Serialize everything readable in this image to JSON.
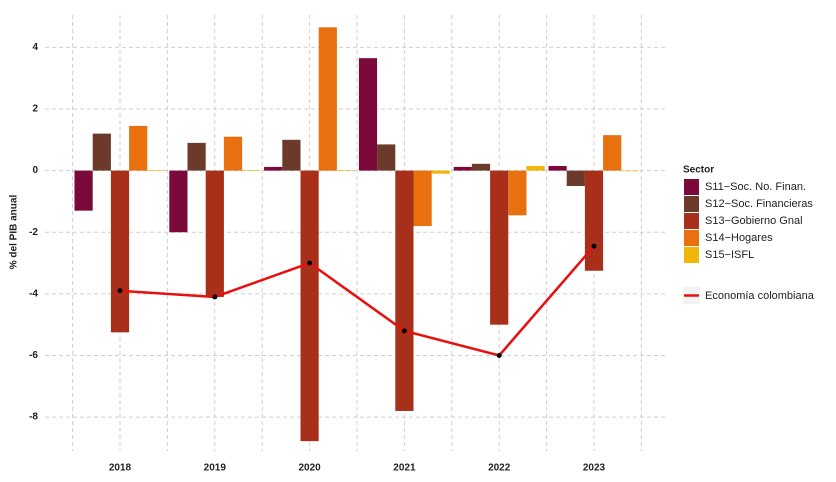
{
  "chart_data": {
    "type": "bar",
    "y_label": "% del PIB anual",
    "categories": [
      "2018",
      "2019",
      "2020",
      "2021",
      "2022",
      "2023"
    ],
    "legend_title": "Sector",
    "series": [
      {
        "name": "S11−Soc. No. Finan.",
        "color": "#7b0a3a",
        "values": [
          -1.3,
          -2.0,
          0.12,
          3.65,
          0.12,
          0.15
        ]
      },
      {
        "name": "S12−Soc. Financieras",
        "color": "#6b3a2a",
        "values": [
          1.2,
          0.9,
          1.0,
          0.85,
          0.22,
          -0.5
        ]
      },
      {
        "name": "S13−Gobierno Gnal",
        "color": "#a8301a",
        "values": [
          -5.25,
          -4.1,
          -8.78,
          -7.8,
          -5.0,
          -3.25
        ]
      },
      {
        "name": "S14−Hogares",
        "color": "#e8700f",
        "values": [
          1.45,
          1.1,
          4.65,
          -1.8,
          -1.45,
          1.15
        ]
      },
      {
        "name": "S15−ISFL",
        "color": "#f2b50a",
        "values": [
          0.02,
          0.02,
          0.02,
          -0.1,
          0.15,
          -0.02
        ]
      },
      {
        "name": "Economía colombiana",
        "type": "line",
        "color": "#e8100f",
        "values": [
          -3.9,
          -4.1,
          -3.0,
          -5.2,
          -6.0,
          -2.45
        ]
      }
    ],
    "ylim": [
      -9.1,
      5.05
    ],
    "yticks": [
      -8,
      -6,
      -4,
      -2,
      0,
      2,
      4
    ],
    "grid": true
  }
}
